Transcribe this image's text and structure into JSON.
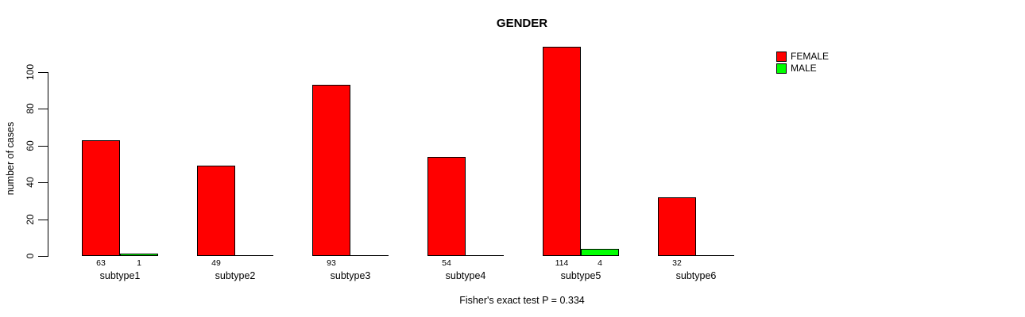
{
  "chart_data": {
    "type": "bar",
    "title": "GENDER",
    "ylabel": "number of cases",
    "xlabel": "",
    "categories": [
      "subtype1",
      "subtype2",
      "subtype3",
      "subtype4",
      "subtype5",
      "subtype6"
    ],
    "series": [
      {
        "name": "FEMALE",
        "color": "#ff0000",
        "values": [
          63,
          49,
          93,
          54,
          114,
          32
        ]
      },
      {
        "name": "MALE",
        "color": "#00ff00",
        "values": [
          1,
          0,
          0,
          0,
          4,
          0
        ]
      }
    ],
    "yticks": [
      0,
      20,
      40,
      60,
      80,
      100
    ],
    "ylim": [
      0,
      116
    ],
    "grid": false,
    "legend_position": "topright",
    "bar_value_labels": "shown under each nonzero bar",
    "annotation": "Fisher's exact test P = 0.334"
  }
}
